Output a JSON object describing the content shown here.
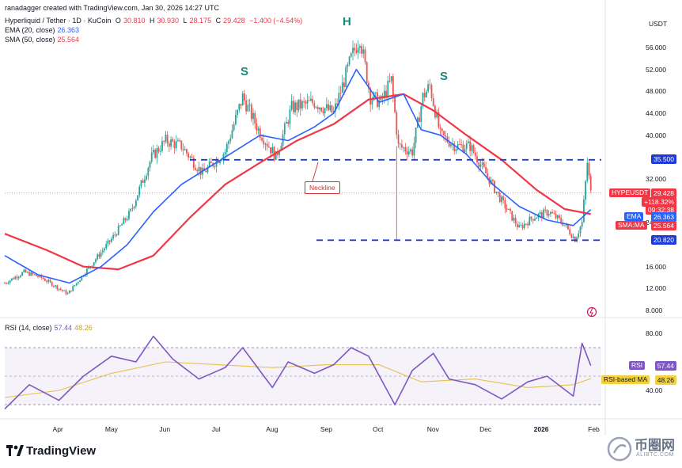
{
  "header": {
    "byline": "ranadagger created with TradingView.com, Jan 30, 2026 14:27 UTC",
    "symbol": "Hyperliquid / Tether · 1D · KuCoin",
    "o_label": "O",
    "o_value": "30.810",
    "h_label": "H",
    "h_value": "30.930",
    "l_label": "L",
    "l_value": "28.175",
    "c_label": "C",
    "c_value": "29.428",
    "change": "−1.400 (−4.54%)",
    "ema_label": "EMA (20, close)",
    "ema_value": "26.363",
    "sma_label": "SMA (50, close)",
    "sma_value": "25.564",
    "rsi_label": "RSI (14, close)",
    "rsi_value": "57.44",
    "rsi_ma_value": "48.26"
  },
  "axis": {
    "currency": "USDT",
    "price_ticks": [
      "56.000",
      "52.000",
      "48.000",
      "44.000",
      "40.000",
      "36.000",
      "32.000",
      "28.000",
      "24.000",
      "20.000",
      "16.000",
      "12.000",
      "8.000"
    ],
    "rsi_ticks": [
      "80.00",
      "60.00",
      "40.00"
    ],
    "months": [
      "Apr",
      "May",
      "Jun",
      "Jul",
      "Aug",
      "Sep",
      "Oct",
      "Nov",
      "Dec",
      "2026",
      "Feb"
    ]
  },
  "tags": {
    "resistance": "35.500",
    "support": "20.820",
    "symbol_tag": "HYPEUSDT",
    "symbol_price": "29.428",
    "symbol_change": "+118.32%",
    "countdown": "09:32:38",
    "ema_tag": "EMA",
    "ema_val": "26.363",
    "sma_tag": "SMA:MA",
    "sma_val": "25.564",
    "rsi_tag": "RSI",
    "rsi_val": "57.44",
    "rsi_ma_tag": "RSI-based MA",
    "rsi_ma_val": "48.26"
  },
  "annotations": {
    "left_shoulder": "S",
    "head": "H",
    "right_shoulder": "S",
    "neckline": "Neckline"
  },
  "brand": "TradingView",
  "watermark": {
    "cn": "币圈网",
    "url": "ALIBTC.COM"
  },
  "colors": {
    "up": "#26a69a",
    "down": "#ef5350",
    "ema": "#2962ff",
    "sma": "#f23645",
    "rsi": "#7e57c2",
    "rsi_ma": "#e6c14d",
    "level": "#1e3ad8",
    "ann": "#1a8a7a"
  },
  "chart_data": [
    {
      "type": "candlestick",
      "title": "Hyperliquid / Tether · 1D · KuCoin",
      "ylabel": "USDT",
      "ylim": [
        6,
        60
      ],
      "x_range": [
        "2025-03-01",
        "2026-02-05"
      ],
      "series": [
        {
          "name": "EMA (20, close)",
          "values": [
            [
              "2025-03-01",
              18.0
            ],
            [
              "2025-03-20",
              14.5
            ],
            [
              "2025-04-07",
              13.0
            ],
            [
              "2025-04-25",
              16.0
            ],
            [
              "2025-05-10",
              20.0
            ],
            [
              "2025-05-25",
              26.0
            ],
            [
              "2025-06-10",
              31.0
            ],
            [
              "2025-06-25",
              34.0
            ],
            [
              "2025-07-10",
              37.0
            ],
            [
              "2025-07-25",
              40.0
            ],
            [
              "2025-08-10",
              39.0
            ],
            [
              "2025-08-25",
              41.5
            ],
            [
              "2025-09-05",
              44.0
            ],
            [
              "2025-09-18",
              52.0
            ],
            [
              "2025-10-01",
              46.0
            ],
            [
              "2025-10-15",
              47.5
            ],
            [
              "2025-10-25",
              41.0
            ],
            [
              "2025-11-05",
              40.0
            ],
            [
              "2025-11-20",
              36.5
            ],
            [
              "2025-12-05",
              31.0
            ],
            [
              "2025-12-20",
              27.0
            ],
            [
              "2026-01-05",
              24.5
            ],
            [
              "2026-01-20",
              23.5
            ],
            [
              "2026-01-30",
              26.4
            ]
          ]
        },
        {
          "name": "SMA (50, close)",
          "values": [
            [
              "2025-03-01",
              22.0
            ],
            [
              "2025-03-25",
              19.0
            ],
            [
              "2025-04-15",
              16.0
            ],
            [
              "2025-05-05",
              15.5
            ],
            [
              "2025-05-25",
              18.0
            ],
            [
              "2025-06-15",
              25.0
            ],
            [
              "2025-07-05",
              31.0
            ],
            [
              "2025-07-25",
              35.0
            ],
            [
              "2025-08-15",
              39.0
            ],
            [
              "2025-09-05",
              42.0
            ],
            [
              "2025-09-25",
              46.5
            ],
            [
              "2025-10-15",
              47.5
            ],
            [
              "2025-11-01",
              44.5
            ],
            [
              "2025-11-20",
              40.0
            ],
            [
              "2025-12-10",
              35.5
            ],
            [
              "2025-12-30",
              30.0
            ],
            [
              "2026-01-15",
              26.5
            ],
            [
              "2026-01-30",
              25.6
            ]
          ]
        }
      ],
      "levels": [
        {
          "label": "resistance",
          "value": 35.5
        },
        {
          "label": "support",
          "value": 20.82
        }
      ],
      "last": {
        "open": 30.81,
        "high": 30.93,
        "low": 28.175,
        "close": 29.428
      }
    },
    {
      "type": "line",
      "title": "RSI (14, close)",
      "ylim": [
        20,
        90
      ],
      "series": [
        {
          "name": "RSI",
          "values": [
            [
              "2025-03-01",
              27
            ],
            [
              "2025-03-15",
              44
            ],
            [
              "2025-04-01",
              33
            ],
            [
              "2025-04-15",
              50
            ],
            [
              "2025-05-01",
              64
            ],
            [
              "2025-05-15",
              60
            ],
            [
              "2025-05-25",
              78
            ],
            [
              "2025-06-05",
              62
            ],
            [
              "2025-06-20",
              48
            ],
            [
              "2025-07-05",
              56
            ],
            [
              "2025-07-15",
              70
            ],
            [
              "2025-08-01",
              42
            ],
            [
              "2025-08-10",
              60
            ],
            [
              "2025-08-25",
              52
            ],
            [
              "2025-09-05",
              58
            ],
            [
              "2025-09-15",
              70
            ],
            [
              "2025-09-25",
              64
            ],
            [
              "2025-10-10",
              30
            ],
            [
              "2025-10-20",
              54
            ],
            [
              "2025-11-01",
              66
            ],
            [
              "2025-11-10",
              48
            ],
            [
              "2025-11-25",
              44
            ],
            [
              "2025-12-10",
              34
            ],
            [
              "2025-12-25",
              46
            ],
            [
              "2026-01-05",
              50
            ],
            [
              "2026-01-20",
              36
            ],
            [
              "2026-01-25",
              73
            ],
            [
              "2026-01-30",
              57.44
            ]
          ]
        },
        {
          "name": "RSI-based MA",
          "values": [
            [
              "2025-03-01",
              35
            ],
            [
              "2025-04-01",
              40
            ],
            [
              "2025-05-01",
              52
            ],
            [
              "2025-06-01",
              60
            ],
            [
              "2025-07-01",
              58
            ],
            [
              "2025-08-01",
              56
            ],
            [
              "2025-09-01",
              58
            ],
            [
              "2025-10-01",
              58
            ],
            [
              "2025-10-25",
              46
            ],
            [
              "2025-11-25",
              48
            ],
            [
              "2025-12-25",
              42
            ],
            [
              "2026-01-20",
              44
            ],
            [
              "2026-01-30",
              48.26
            ]
          ]
        }
      ]
    }
  ]
}
